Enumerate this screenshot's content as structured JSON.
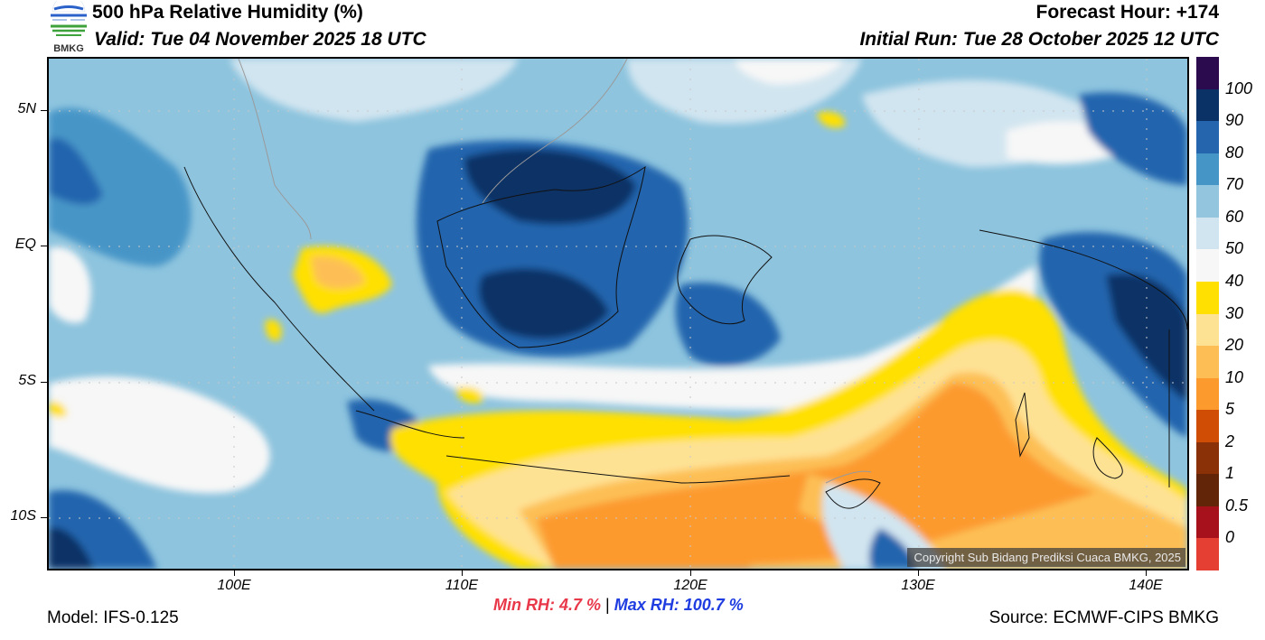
{
  "header": {
    "title": "500 hPa Relative Humidity (%)",
    "valid": "Valid: Tue 04 November 2025 18 UTC",
    "forecast_hour": "Forecast Hour: +174",
    "initial_run": "Initial Run: Tue 28 October 2025 12 UTC",
    "logo_text": "BMKG"
  },
  "map": {
    "lat_labels": [
      "5N",
      "EQ",
      "5S",
      "10S"
    ],
    "lon_labels": [
      "100E",
      "110E",
      "120E",
      "130E",
      "140E"
    ],
    "copyright": "Copyright Sub Bidang Prediksi Cuaca BMKG, 2025"
  },
  "colorbar": {
    "labels": [
      "100",
      "90",
      "80",
      "70",
      "60",
      "50",
      "40",
      "30",
      "20",
      "10",
      "5",
      "2",
      "1",
      "0.5",
      "0"
    ],
    "colors": [
      "#2b0a4e",
      "#0b3266",
      "#2465ae",
      "#4695c7",
      "#93c5df",
      "#d1e5f0",
      "#f7f7f7",
      "#ffe000",
      "#fee294",
      "#fdbf55",
      "#fc9a2e",
      "#cf4d05",
      "#8b3108",
      "#632507",
      "#a6111c",
      "#e53e32"
    ]
  },
  "footer": {
    "model": "Model: IFS-0.125",
    "min_rh": "Min RH:   4.7 %",
    "separator": "|",
    "max_rh": "Max RH: 100.7 %",
    "source": "Source: ECMWF-CIPS BMKG"
  }
}
